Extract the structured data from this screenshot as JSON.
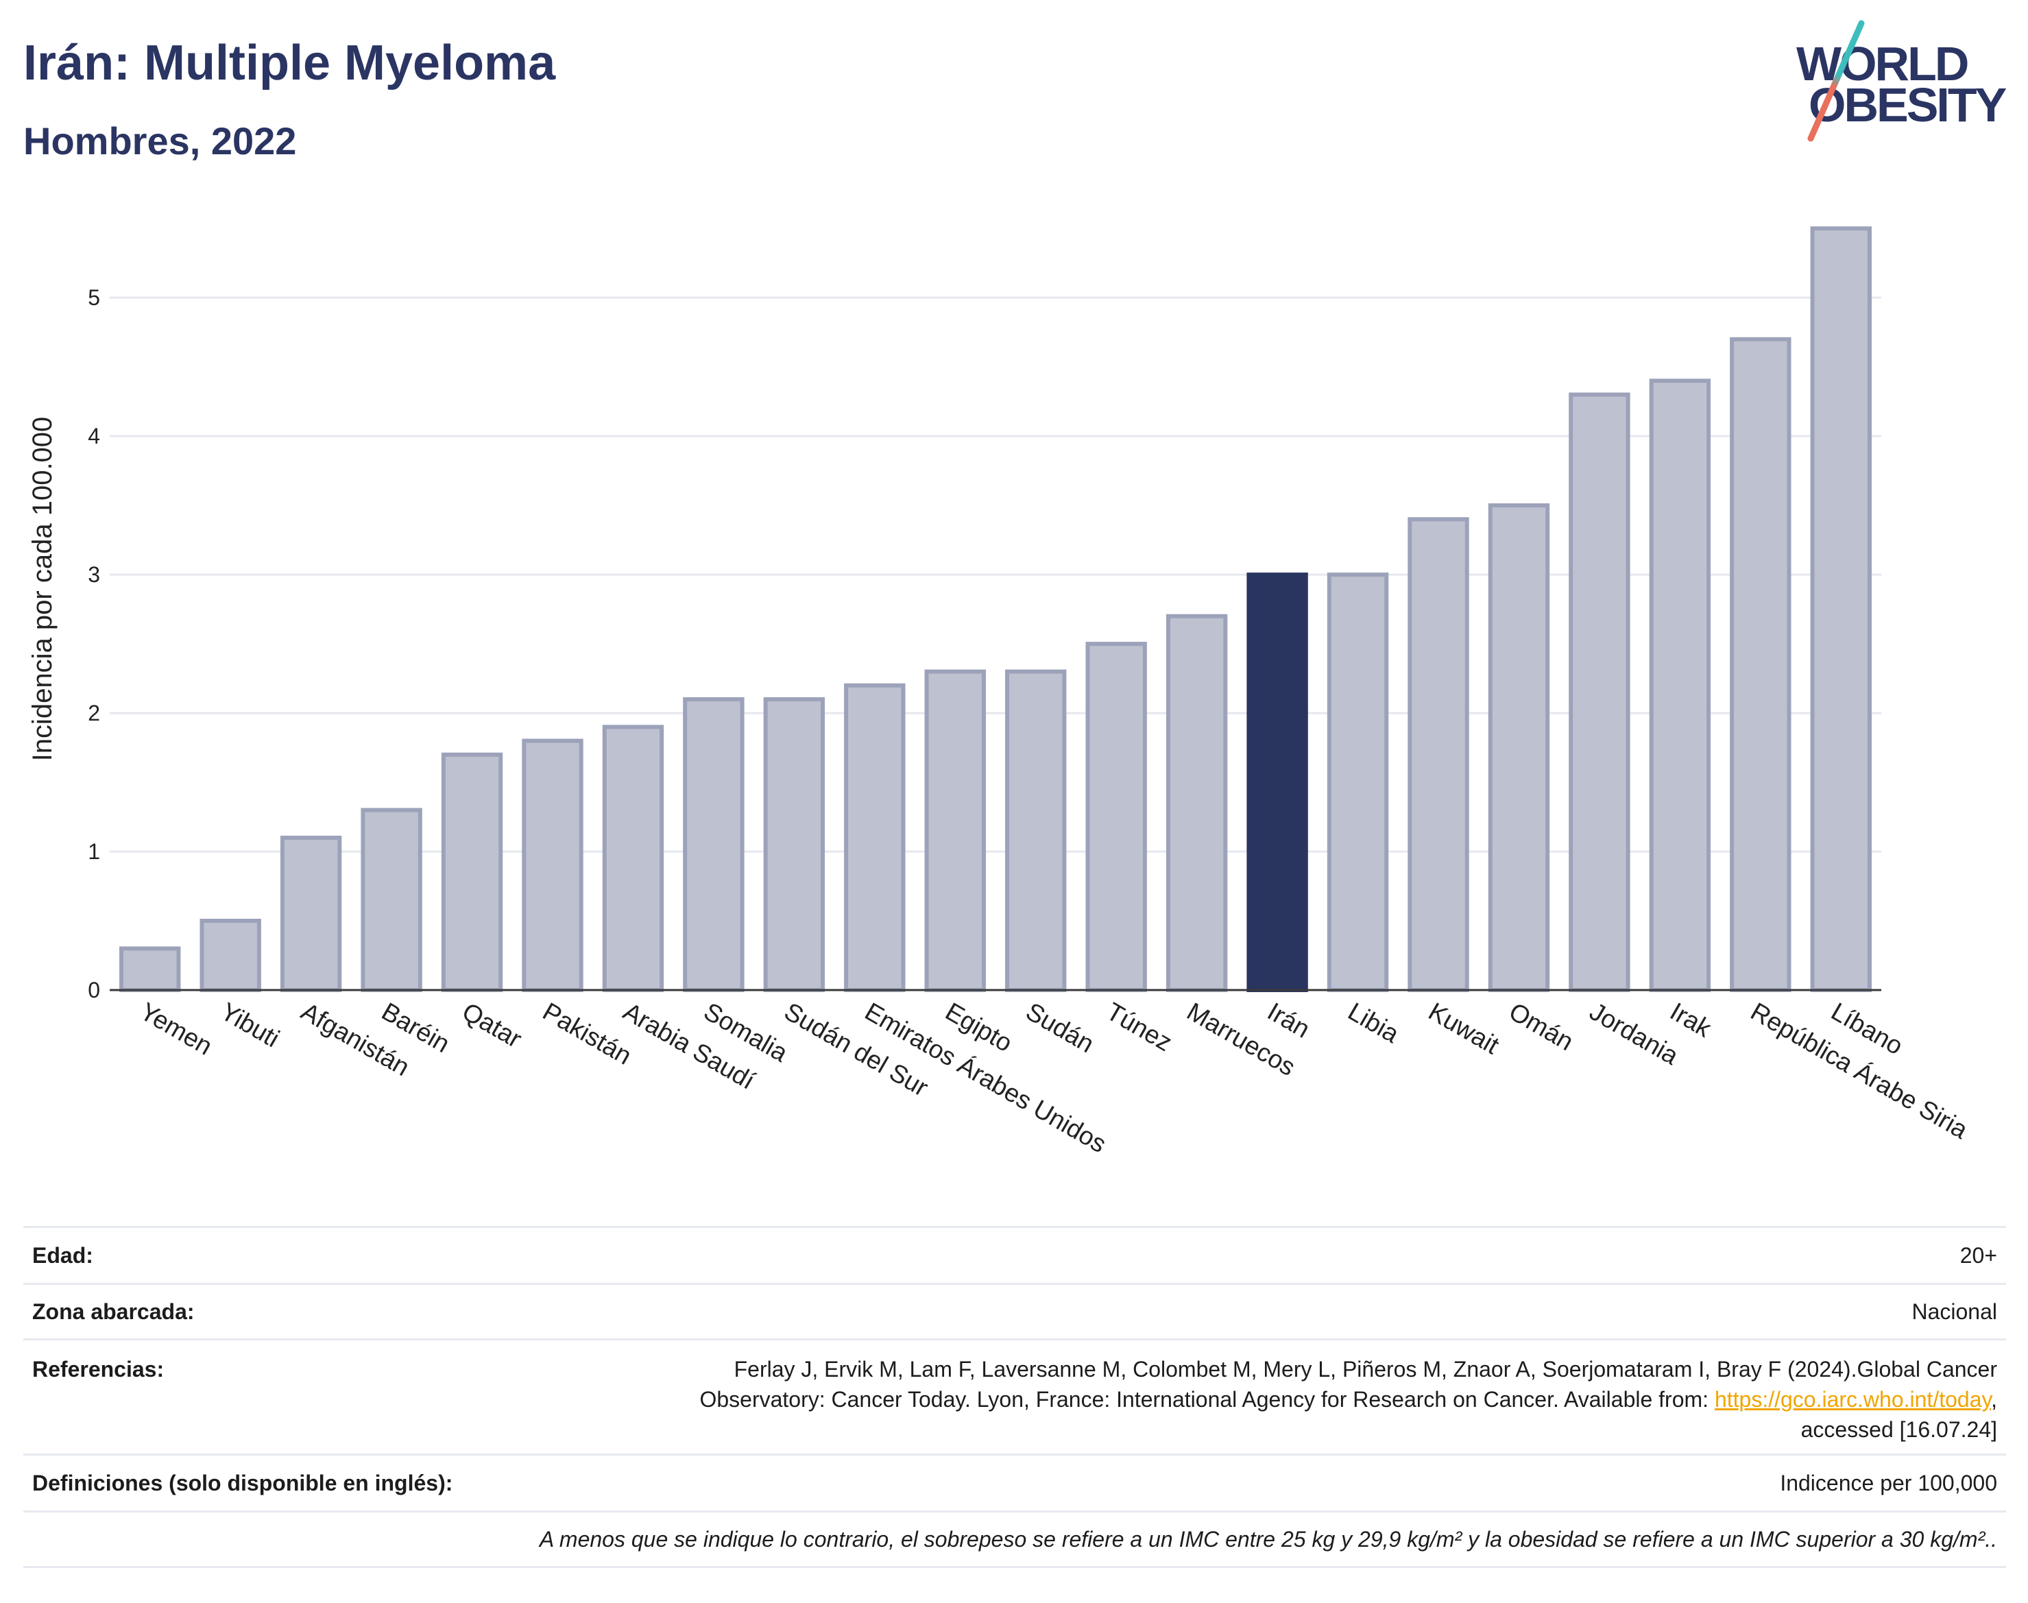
{
  "colors": {
    "title": "#2b3563",
    "bar": "#bec2d0",
    "bar_outline": "#9ca2b9",
    "highlight": "#29345f",
    "gridline": "#e6e8ef",
    "axis": "#3a3a3a",
    "link": "#f0a500",
    "logo_teal": "#3dbdbd",
    "logo_coral": "#e8705c"
  },
  "logo": {
    "line1": "WORLD",
    "line2": "OBESITY"
  },
  "chart_data": {
    "type": "bar",
    "title": "Irán: Multiple Myeloma",
    "subtitle": "Hombres, 2022",
    "ylabel": "Incidencia por cada 100.000",
    "categories": [
      "Yemen",
      "Yibuti",
      "Afganistán",
      "Baréin",
      "Qatar",
      "Pakistán",
      "Arabia Saudí",
      "Somalia",
      "Sudán del Sur",
      "Emiratos Árabes Unidos",
      "Egipto",
      "Sudán",
      "Túnez",
      "Marruecos",
      "Irán",
      "Libia",
      "Kuwait",
      "Omán",
      "Jordania",
      "Irak",
      "República Árabe Siria",
      "Líbano"
    ],
    "values": [
      0.3,
      0.5,
      1.1,
      1.3,
      1.7,
      1.8,
      1.9,
      2.1,
      2.1,
      2.2,
      2.3,
      2.3,
      2.5,
      2.7,
      3.0,
      3.0,
      3.4,
      3.5,
      4.3,
      4.4,
      4.7,
      5.5
    ],
    "highlight_index": 14,
    "yticks": [
      0,
      1,
      2,
      3,
      4,
      5
    ],
    "ylim": [
      0,
      5.6
    ],
    "grid": true
  },
  "table": {
    "age": {
      "label": "Edad:",
      "value": "20+"
    },
    "area": {
      "label": "Zona abarcada:",
      "value": "Nacional"
    },
    "references": {
      "label": "Referencias:",
      "text_before": "Ferlay J, Ervik M, Lam F, Laversanne M, Colombet M, Mery L, Piñeros M, Znaor A, Soerjomataram I, Bray F (2024).Global Cancer Observatory: Cancer Today. Lyon, France: International Agency for Research on Cancer. Available from: ",
      "link": "https://gco.iarc.who.int/today",
      "text_after": ", accessed [16.07.24]"
    },
    "definitions": {
      "label": "Definiciones (solo disponible en inglés):",
      "value": "Indicence per 100,000"
    },
    "note": "A menos que se indique lo contrario, el sobrepeso se refiere a un IMC entre 25 kg y 29,9 kg/m² y la obesidad se refiere a un IMC superior a 30 kg/m².."
  }
}
